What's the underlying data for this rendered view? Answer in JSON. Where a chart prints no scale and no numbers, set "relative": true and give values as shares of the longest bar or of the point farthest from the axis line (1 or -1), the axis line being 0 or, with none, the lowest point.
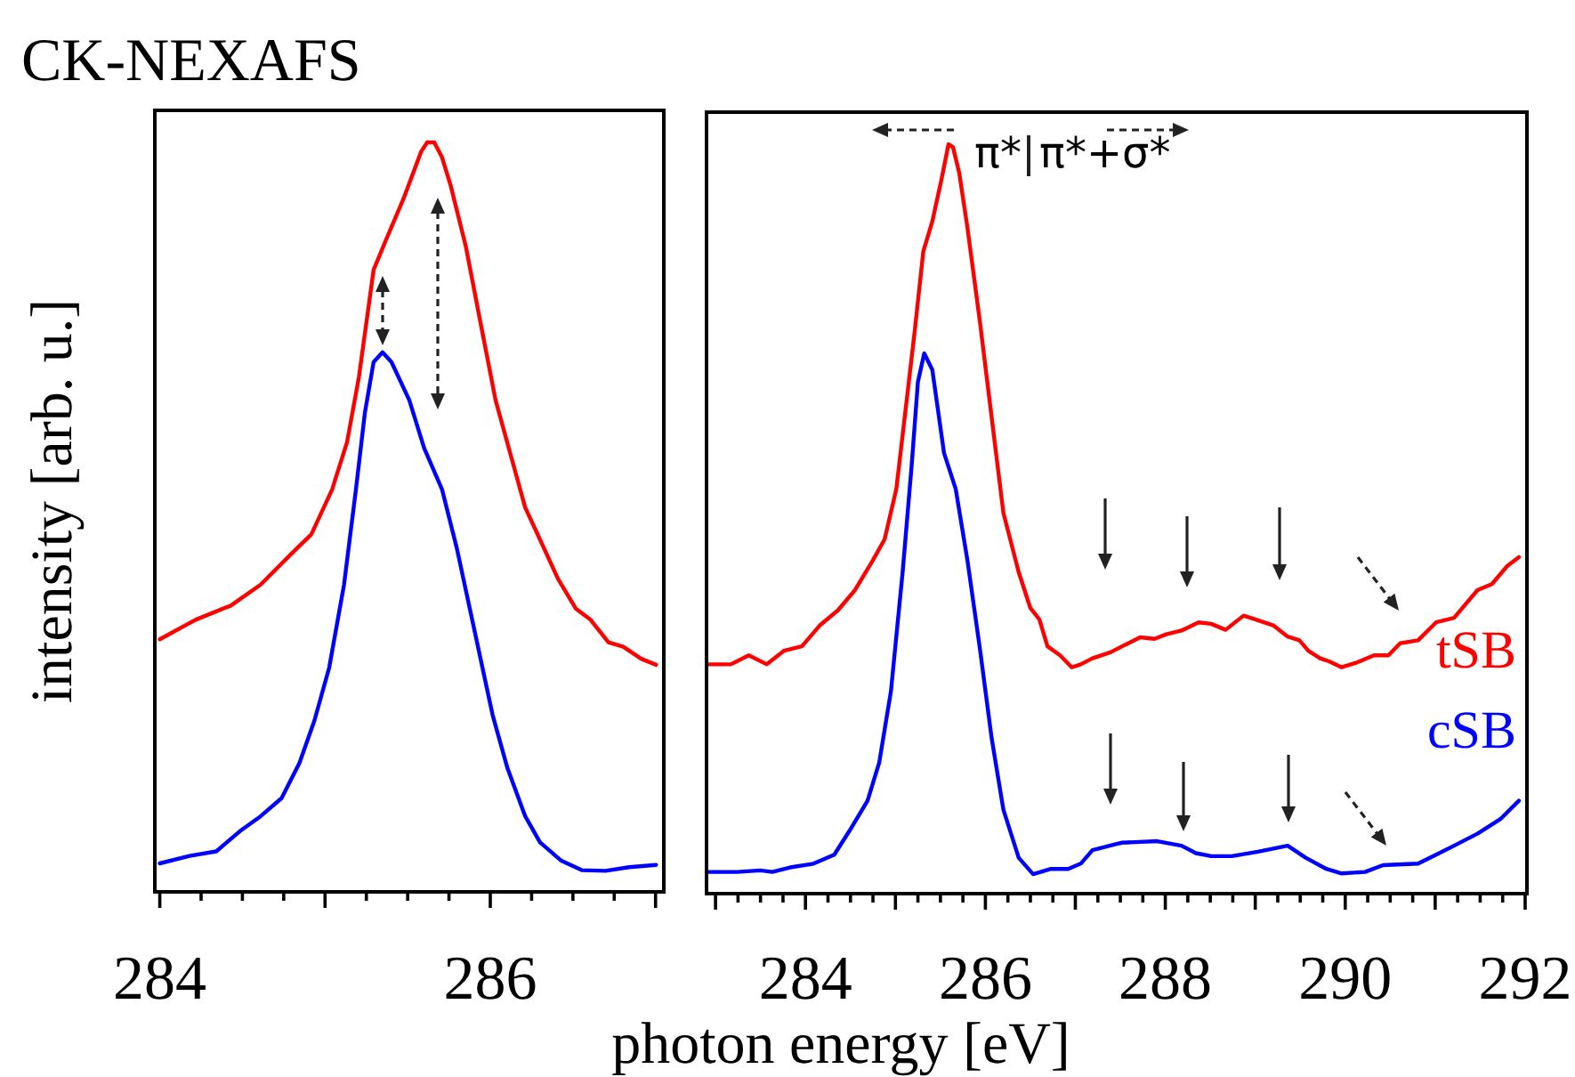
{
  "chart_data": [
    {
      "type": "line",
      "title": "CK-NEXAFS",
      "ylabel": "intensity [arb. u.]",
      "relative": true,
      "grid": false,
      "xlim": [
        283.97,
        287.05
      ],
      "xticks": [
        284,
        {
          "value": 284.25,
          "label": null
        },
        {
          "value": 284.5,
          "label": null
        },
        {
          "value": 284.75,
          "label": null
        },
        {
          "value": 285,
          "label": null
        },
        {
          "value": 285.25,
          "label": null
        },
        {
          "value": 285.5,
          "label": null
        },
        {
          "value": 285.75,
          "label": null
        },
        286,
        {
          "value": 286.25,
          "label": null
        },
        {
          "value": 286.5,
          "label": null
        },
        {
          "value": 286.75,
          "label": null
        },
        {
          "value": 287,
          "label": null
        }
      ],
      "series": [
        {
          "color": "#ff0000",
          "x": [
            284.0,
            284.216,
            284.43,
            284.611,
            284.791,
            284.917,
            285.043,
            285.133,
            285.205,
            285.294,
            285.367,
            285.475,
            285.582,
            285.618,
            285.661,
            285.708,
            285.762,
            285.852,
            285.942,
            286.032,
            286.122,
            286.211,
            286.301,
            286.409,
            286.517,
            286.607,
            286.715,
            286.805,
            286.913,
            287.003
          ],
          "values": [
            0.337,
            0.363,
            0.382,
            0.41,
            0.45,
            0.477,
            0.537,
            0.6,
            0.687,
            0.83,
            0.869,
            0.925,
            0.988,
            1.0,
            1.0,
            0.98,
            0.941,
            0.861,
            0.758,
            0.656,
            0.584,
            0.513,
            0.47,
            0.418,
            0.378,
            0.363,
            0.333,
            0.327,
            0.311,
            0.303
          ]
        },
        {
          "color": "#0000ff",
          "x": [
            284.0,
            284.18,
            284.342,
            284.485,
            284.611,
            284.737,
            284.845,
            284.935,
            285.025,
            285.115,
            285.187,
            285.241,
            285.294,
            285.348,
            285.402,
            285.51,
            285.6,
            285.708,
            285.798,
            285.906,
            286.014,
            286.104,
            286.211,
            286.301,
            286.427,
            286.553,
            286.697,
            286.841,
            287.003
          ],
          "values": [
            0.038,
            0.048,
            0.054,
            0.081,
            0.101,
            0.125,
            0.172,
            0.228,
            0.299,
            0.41,
            0.537,
            0.639,
            0.707,
            0.72,
            0.707,
            0.656,
            0.592,
            0.537,
            0.458,
            0.347,
            0.236,
            0.165,
            0.101,
            0.066,
            0.042,
            0.029,
            0.028,
            0.033,
            0.036
          ]
        }
      ]
    },
    {
      "type": "line",
      "xlabel": "photon energy [eV]",
      "relative": true,
      "grid": false,
      "annotations": [
        "π*",
        "π*+σ*"
      ],
      "xlim": [
        282.9,
        292.02
      ],
      "xticks": [
        {
          "value": 283,
          "label": null
        },
        {
          "value": 283.25,
          "label": null
        },
        {
          "value": 283.5,
          "label": null
        },
        {
          "value": 283.75,
          "label": null
        },
        284,
        {
          "value": 284.25,
          "label": null
        },
        {
          "value": 284.5,
          "label": null
        },
        {
          "value": 284.75,
          "label": null
        },
        {
          "value": 285,
          "label": null
        },
        {
          "value": 285.25,
          "label": null
        },
        {
          "value": 285.5,
          "label": null
        },
        {
          "value": 285.75,
          "label": null
        },
        286,
        {
          "value": 286.25,
          "label": null
        },
        {
          "value": 286.5,
          "label": null
        },
        {
          "value": 286.75,
          "label": null
        },
        {
          "value": 287,
          "label": null
        },
        {
          "value": 287.25,
          "label": null
        },
        {
          "value": 287.5,
          "label": null
        },
        {
          "value": 287.75,
          "label": null
        },
        288,
        {
          "value": 288.25,
          "label": null
        },
        {
          "value": 288.5,
          "label": null
        },
        {
          "value": 288.75,
          "label": null
        },
        {
          "value": 289,
          "label": null
        },
        {
          "value": 289.25,
          "label": null
        },
        {
          "value": 289.5,
          "label": null
        },
        {
          "value": 289.75,
          "label": null
        },
        290,
        {
          "value": 290.25,
          "label": null
        },
        {
          "value": 290.5,
          "label": null
        },
        {
          "value": 290.75,
          "label": null
        },
        {
          "value": 291,
          "label": null
        },
        {
          "value": 291.25,
          "label": null
        },
        {
          "value": 291.5,
          "label": null
        },
        {
          "value": 291.75,
          "label": null
        },
        292
      ],
      "series": [
        {
          "name": "tSB",
          "color": "#ff0000",
          "x": [
            282.91,
            283.17,
            283.37,
            283.57,
            283.76,
            283.96,
            284.16,
            284.36,
            284.55,
            284.75,
            284.88,
            285.01,
            285.11,
            285.21,
            285.31,
            285.41,
            285.51,
            285.59,
            285.64,
            285.71,
            285.8,
            285.94,
            286.07,
            286.2,
            286.37,
            286.5,
            286.6,
            286.69,
            286.83,
            286.96,
            287.06,
            287.19,
            287.39,
            287.52,
            287.72,
            287.88,
            288.01,
            288.18,
            288.37,
            288.51,
            288.67,
            288.87,
            289.0,
            289.2,
            289.36,
            289.49,
            289.59,
            289.72,
            289.82,
            289.96,
            290.12,
            290.32,
            290.48,
            290.61,
            290.81,
            291.01,
            291.21,
            291.47,
            291.63,
            291.8,
            291.93
          ],
          "values": [
            0.306,
            0.306,
            0.318,
            0.306,
            0.324,
            0.33,
            0.358,
            0.378,
            0.405,
            0.445,
            0.473,
            0.54,
            0.643,
            0.746,
            0.857,
            0.897,
            0.952,
            1.0,
            0.996,
            0.961,
            0.889,
            0.762,
            0.635,
            0.508,
            0.429,
            0.381,
            0.366,
            0.33,
            0.318,
            0.302,
            0.306,
            0.314,
            0.322,
            0.33,
            0.342,
            0.34,
            0.346,
            0.351,
            0.362,
            0.36,
            0.352,
            0.371,
            0.366,
            0.358,
            0.343,
            0.338,
            0.324,
            0.314,
            0.31,
            0.302,
            0.308,
            0.318,
            0.318,
            0.334,
            0.338,
            0.362,
            0.368,
            0.405,
            0.413,
            0.437,
            0.449
          ]
        },
        {
          "name": "cSB",
          "color": "#0000ff",
          "x": [
            282.91,
            283.24,
            283.5,
            283.63,
            283.83,
            284.09,
            284.32,
            284.49,
            284.69,
            284.82,
            284.95,
            285.08,
            285.18,
            285.25,
            285.32,
            285.41,
            285.54,
            285.67,
            285.8,
            285.94,
            286.07,
            286.2,
            286.37,
            286.53,
            286.73,
            286.92,
            287.06,
            287.19,
            287.45,
            287.52,
            287.91,
            288.18,
            288.34,
            288.51,
            288.74,
            289.03,
            289.36,
            289.56,
            289.79,
            289.96,
            290.22,
            290.42,
            290.81,
            291.01,
            291.21,
            291.47,
            291.73,
            291.93
          ],
          "values": [
            0.029,
            0.029,
            0.031,
            0.029,
            0.035,
            0.04,
            0.052,
            0.084,
            0.124,
            0.175,
            0.27,
            0.429,
            0.571,
            0.683,
            0.721,
            0.699,
            0.588,
            0.54,
            0.445,
            0.326,
            0.207,
            0.112,
            0.048,
            0.026,
            0.033,
            0.033,
            0.04,
            0.058,
            0.066,
            0.068,
            0.07,
            0.064,
            0.054,
            0.05,
            0.05,
            0.056,
            0.064,
            0.048,
            0.033,
            0.027,
            0.029,
            0.038,
            0.04,
            0.052,
            0.064,
            0.08,
            0.1,
            0.124
          ]
        }
      ]
    }
  ]
}
